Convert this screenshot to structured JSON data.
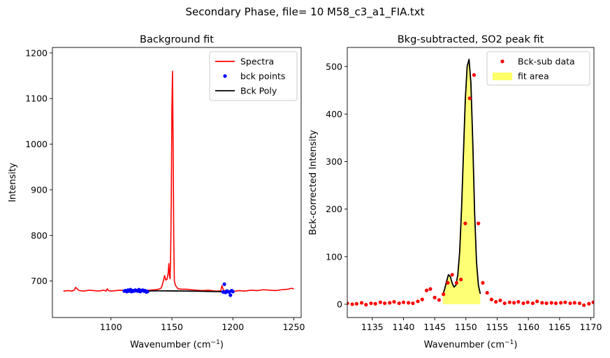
{
  "suptitle": "Secondary Phase, file= 10 M58_c3_a1_FIA.txt",
  "chart_data": [
    {
      "type": "line",
      "title": "Background fit",
      "xlabel": "Wavenumber (cm",
      "xlabel_sup": "−1",
      "xlabel_tail": ")",
      "ylabel": "Intensity",
      "xlim": [
        1052,
        1256
      ],
      "ylim": [
        620,
        1212
      ],
      "xticks": [
        1100,
        1150,
        1200,
        1250
      ],
      "yticks": [
        700,
        800,
        900,
        1000,
        1100,
        1200
      ],
      "legend_position": "top-right",
      "legend": [
        {
          "label": "Spectra",
          "kind": "line",
          "color": "#ff0000"
        },
        {
          "label": "bck points",
          "kind": "marker",
          "color": "#0000ff"
        },
        {
          "label": "Bck Poly",
          "kind": "line",
          "color": "#000000"
        }
      ],
      "series": [
        {
          "name": "Spectra",
          "color": "#ff0000",
          "x": [
            1061,
            1065,
            1068,
            1070,
            1071,
            1074,
            1078,
            1082,
            1086,
            1090,
            1094,
            1096,
            1097,
            1098,
            1100,
            1104,
            1108,
            1112,
            1116,
            1120,
            1124,
            1128,
            1132,
            1136,
            1139,
            1141,
            1142,
            1143,
            1144,
            1145,
            1146,
            1147,
            1147.5,
            1148,
            1148.5,
            1149,
            1149.5,
            1150,
            1150.5,
            1151,
            1151.5,
            1152,
            1153,
            1155,
            1158,
            1162,
            1166,
            1170,
            1175,
            1180,
            1185,
            1190,
            1191,
            1192,
            1193,
            1194,
            1196,
            1200,
            1205,
            1210,
            1215,
            1220,
            1225,
            1230,
            1235,
            1240,
            1245,
            1248,
            1250
          ],
          "y": [
            678,
            679,
            678,
            680,
            686,
            679,
            678,
            680,
            679,
            678,
            680,
            678,
            683,
            679,
            678,
            679,
            680,
            679,
            681,
            678,
            680,
            679,
            680,
            681,
            682,
            684,
            690,
            700,
            712,
            702,
            704,
            718,
            738,
            712,
            705,
            760,
            880,
            1080,
            1160,
            1000,
            800,
            700,
            690,
            683,
            682,
            682,
            681,
            680,
            679,
            680,
            678,
            678,
            690,
            682,
            678,
            679,
            676,
            677,
            679,
            678,
            680,
            679,
            681,
            680,
            679,
            681,
            682,
            684,
            683
          ]
        },
        {
          "name": "bck points",
          "color": "#0000ff",
          "x": [
            1111,
            1112,
            1113,
            1114,
            1115,
            1116,
            1117,
            1118,
            1119,
            1120,
            1121,
            1122,
            1123,
            1124,
            1125,
            1126,
            1127,
            1128,
            1129,
            1130,
            1192,
            1193,
            1194,
            1195,
            1196,
            1197,
            1198,
            1199,
            1200
          ],
          "y": [
            678,
            679,
            677,
            680,
            678,
            681,
            677,
            679,
            678,
            680,
            679,
            678,
            681,
            677,
            679,
            680,
            678,
            679,
            676,
            677,
            676,
            693,
            675,
            678,
            677,
            676,
            669,
            679,
            677
          ]
        },
        {
          "name": "Bck Poly",
          "color": "#000000",
          "x": [
            1110,
            1120,
            1130,
            1140,
            1150,
            1160,
            1170,
            1180,
            1190,
            1200
          ],
          "y": [
            677.5,
            678,
            678.3,
            678.5,
            678.4,
            678.1,
            677.7,
            677.2,
            676.8,
            676.5
          ]
        }
      ]
    },
    {
      "type": "line",
      "title": "Bkg-subtracted, SO2 peak fit",
      "xlabel": "Wavenumber (cm",
      "xlabel_sup": "−1",
      "xlabel_tail": ")",
      "ylabel": "Bck-corrected Intensity",
      "xlim": [
        1131,
        1170.5
      ],
      "ylim": [
        -28,
        540
      ],
      "xticks": [
        1135,
        1140,
        1145,
        1150,
        1155,
        1160,
        1165,
        1170
      ],
      "yticks": [
        0,
        100,
        200,
        300,
        400,
        500
      ],
      "legend_position": "top-right",
      "legend": [
        {
          "label": "Bck-sub data",
          "kind": "marker",
          "color": "#ff0000"
        },
        {
          "label": "fit area",
          "kind": "area",
          "color": "#ffff66"
        }
      ],
      "series": [
        {
          "name": "Bck-sub data",
          "color": "#ff0000",
          "x": [
            1131,
            1131.8,
            1132.5,
            1133.3,
            1134,
            1134.8,
            1135.5,
            1136.3,
            1137,
            1137.8,
            1138.5,
            1139.3,
            1140,
            1140.8,
            1141.5,
            1142.3,
            1143,
            1143.7,
            1144.3,
            1145,
            1145.7,
            1146.4,
            1147.1,
            1147.8,
            1148.5,
            1149.2,
            1149.9,
            1150.6,
            1151.3,
            1152,
            1152.7,
            1153.4,
            1154.1,
            1154.8,
            1155.5,
            1156.2,
            1157,
            1157.7,
            1158.4,
            1159.2,
            1159.9,
            1160.7,
            1161.4,
            1162.2,
            1162.9,
            1163.7,
            1164.4,
            1165.2,
            1165.9,
            1166.7,
            1167.4,
            1168.2,
            1168.9,
            1169.7,
            1170.4
          ],
          "y": [
            2,
            0,
            1,
            3,
            -1,
            2,
            1,
            4,
            2,
            3,
            5,
            2,
            4,
            3,
            2,
            6,
            10,
            29,
            32,
            14,
            9,
            21,
            45,
            62,
            45,
            52,
            170,
            433,
            482,
            170,
            45,
            24,
            10,
            5,
            8,
            2,
            4,
            3,
            5,
            2,
            4,
            2,
            6,
            3,
            2,
            3,
            2,
            3,
            4,
            2,
            3,
            2,
            -2,
            1,
            4
          ]
        },
        {
          "name": "fit",
          "color": "#000000",
          "x": [
            1146.3,
            1146.6,
            1146.9,
            1147.2,
            1147.5,
            1147.8,
            1148.1,
            1148.4,
            1148.7,
            1149.0,
            1149.3,
            1149.6,
            1149.9,
            1150.2,
            1150.5,
            1150.8,
            1151.1,
            1151.4,
            1151.7,
            1152.0,
            1152.3
          ],
          "y": [
            20,
            32,
            48,
            62,
            58,
            44,
            36,
            40,
            62,
            110,
            200,
            315,
            430,
            500,
            515,
            465,
            340,
            190,
            88,
            40,
            22
          ]
        }
      ],
      "fit_area": {
        "x_start": 1146.3,
        "x_end": 1152.3
      }
    }
  ]
}
